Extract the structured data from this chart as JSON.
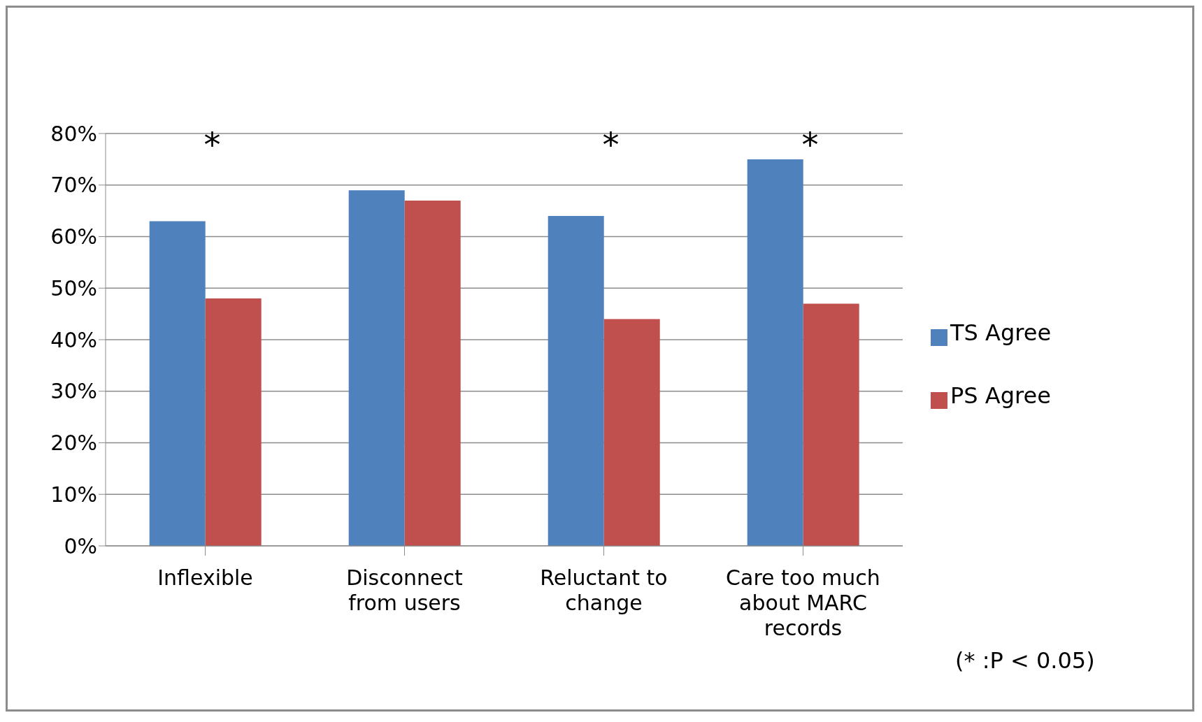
{
  "chart_data": {
    "type": "bar",
    "categories": [
      "Inflexible",
      "Disconnect from users",
      "Reluctant to change",
      "Care too much about MARC records"
    ],
    "series": [
      {
        "name": "TS Agree",
        "color": "#4f81bd",
        "values": [
          63,
          69,
          64,
          75
        ]
      },
      {
        "name": "PS Agree",
        "color": "#c0504d",
        "values": [
          48,
          67,
          44,
          47
        ]
      }
    ],
    "ylim": [
      0,
      80
    ],
    "yticks": [
      {
        "value": 0,
        "label": "0%"
      },
      {
        "value": 10,
        "label": "10%"
      },
      {
        "value": 20,
        "label": "20%"
      },
      {
        "value": 30,
        "label": "30%"
      },
      {
        "value": 40,
        "label": "40%"
      },
      {
        "value": 50,
        "label": "50%"
      },
      {
        "value": 60,
        "label": "60%"
      },
      {
        "value": 70,
        "label": "70%"
      },
      {
        "value": 80,
        "label": "80%"
      }
    ],
    "grid": "y",
    "legend": "right",
    "annotations": [
      "*",
      "*",
      "*",
      "(* :P < 0.05)"
    ]
  }
}
